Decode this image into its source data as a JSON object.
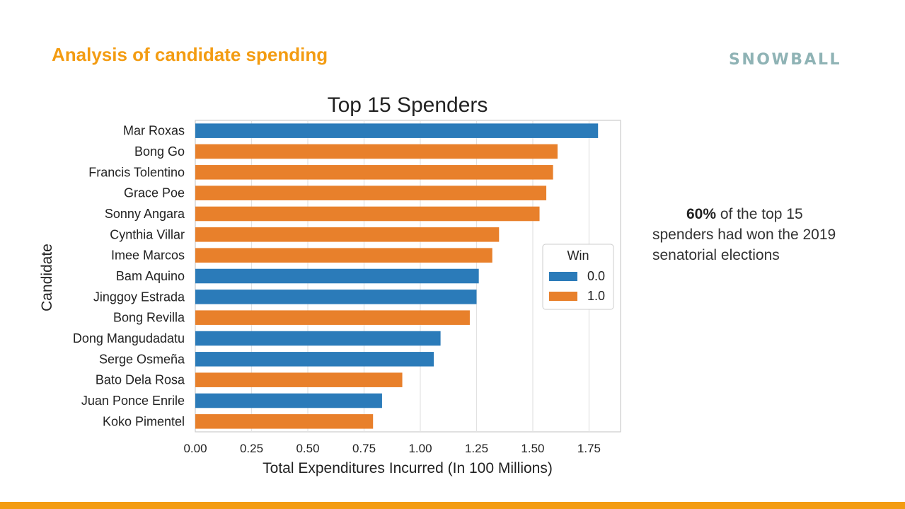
{
  "slide": {
    "title": "Analysis of candidate spending",
    "logo": "SNOWBALL",
    "note_bold": "60%",
    "note_rest": " of the top 15 spenders had won the 2019 senatorial elections"
  },
  "colors": {
    "accent": "#f39c12",
    "win0": "#2b7bb9",
    "win1": "#e8802b",
    "logo": "#8fb3b5"
  },
  "chart_data": {
    "type": "bar",
    "orientation": "horizontal",
    "title": "Top 15 Spenders",
    "xlabel": "Total Expenditures Incurred (In 100 Millions)",
    "ylabel": "Candidate",
    "xlim": [
      0,
      1.89
    ],
    "xticks": [
      "0.00",
      "0.25",
      "0.50",
      "0.75",
      "1.00",
      "1.25",
      "1.50",
      "1.75"
    ],
    "grid": true,
    "legend": {
      "title": "Win",
      "position": "right",
      "entries": [
        "0.0",
        "1.0"
      ]
    },
    "categories": [
      "Mar Roxas",
      "Bong Go",
      "Francis Tolentino",
      "Grace Poe",
      "Sonny Angara",
      "Cynthia Villar",
      "Imee Marcos",
      "Bam Aquino",
      "Jinggoy Estrada",
      "Bong Revilla",
      "Dong Mangudadatu",
      "Serge Osmeña",
      "Bato Dela Rosa",
      "Juan Ponce Enrile",
      "Koko Pimentel"
    ],
    "values": [
      1.79,
      1.61,
      1.59,
      1.56,
      1.53,
      1.35,
      1.32,
      1.26,
      1.25,
      1.22,
      1.09,
      1.06,
      0.92,
      0.83,
      0.79
    ],
    "win": [
      "0.0",
      "1.0",
      "1.0",
      "1.0",
      "1.0",
      "1.0",
      "1.0",
      "0.0",
      "0.0",
      "1.0",
      "0.0",
      "0.0",
      "1.0",
      "0.0",
      "1.0"
    ]
  }
}
